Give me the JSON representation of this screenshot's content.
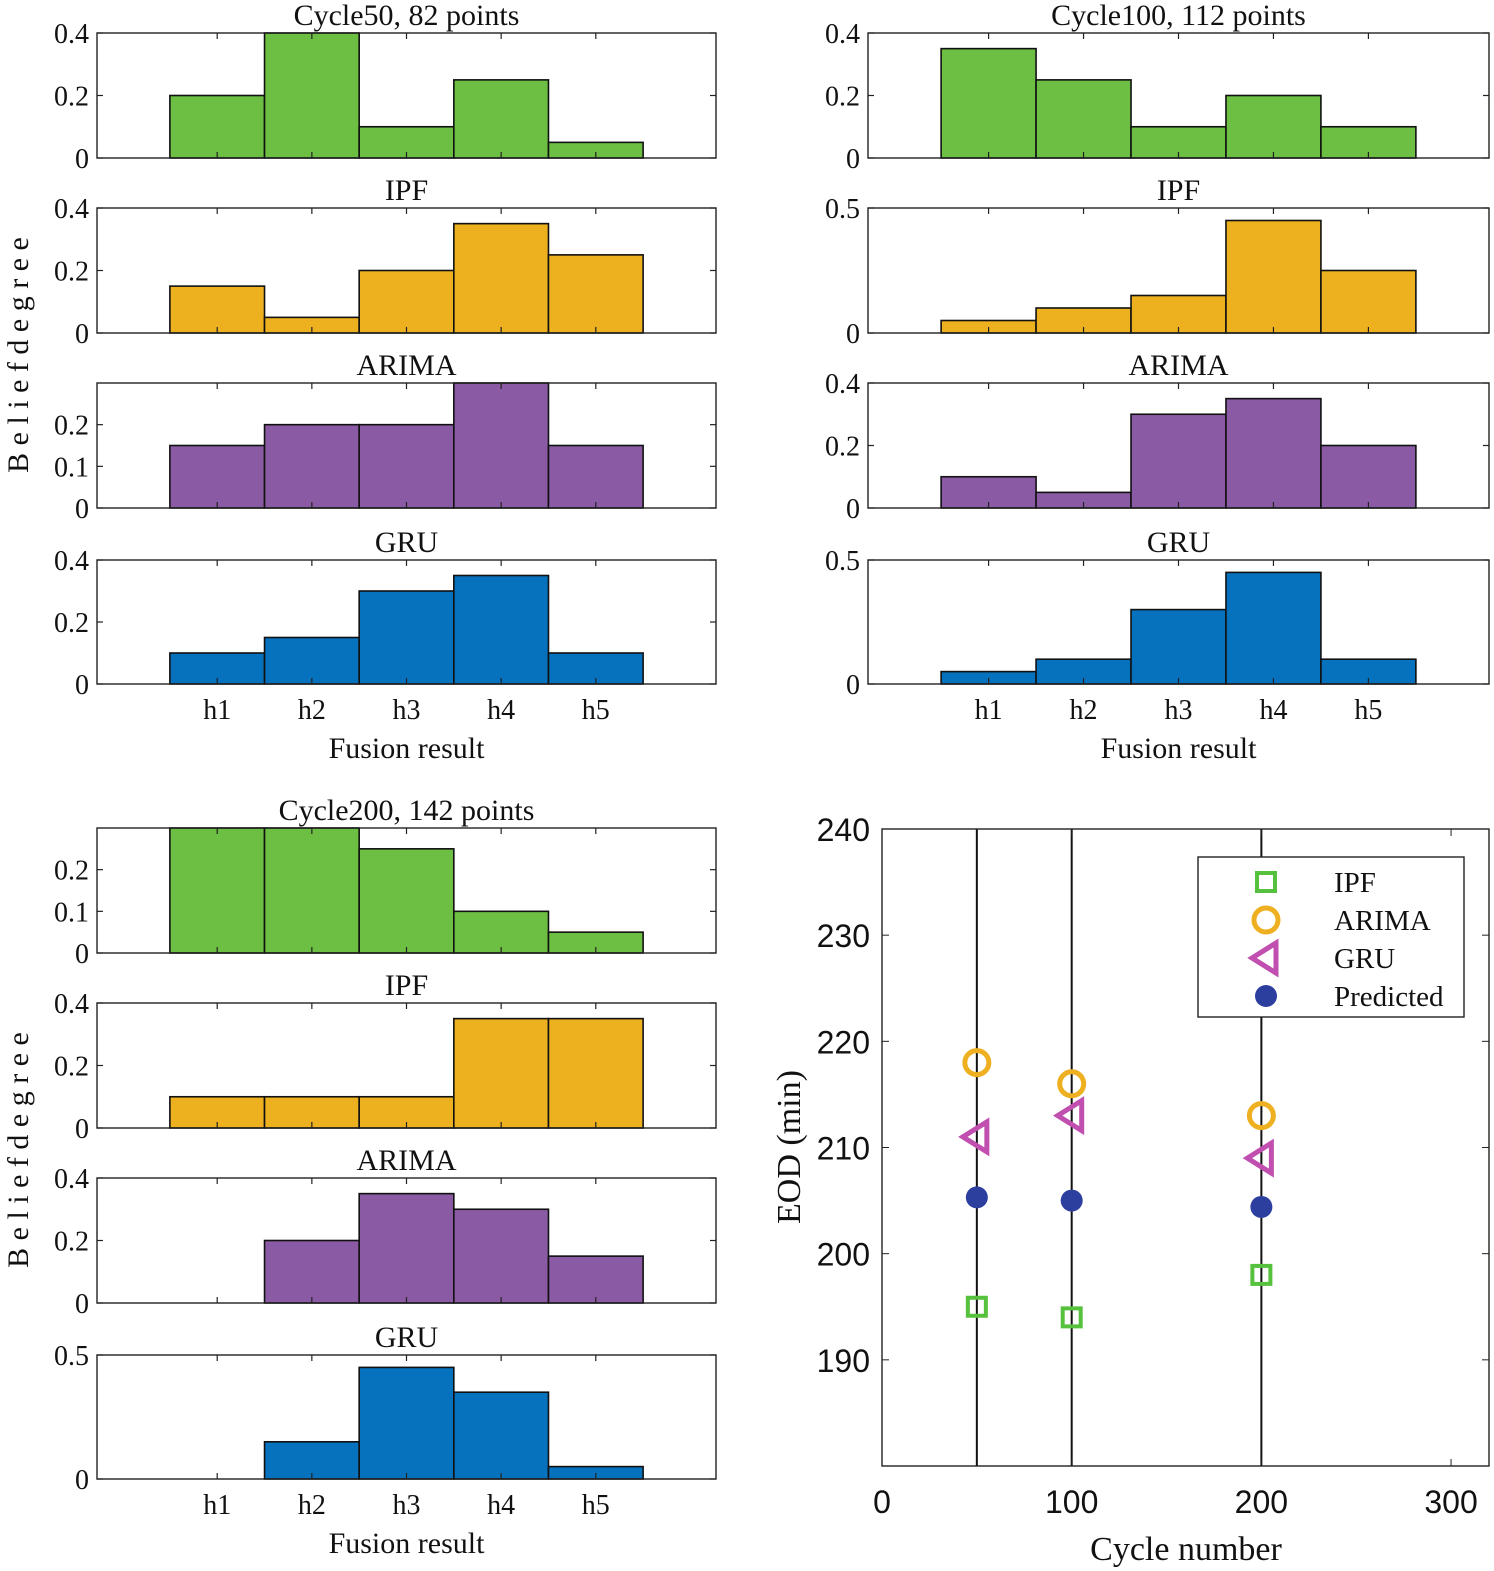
{
  "chart_data": [
    {
      "type": "bar",
      "group_title": "Cycle50, 82 points",
      "ylabel": "B e l i e f   d e g r e e",
      "xlabel": "Fusion result",
      "categories": [
        "h1",
        "h2",
        "h3",
        "h4",
        "h5"
      ],
      "subplots": [
        {
          "title": "Cycle50, 82 points",
          "color": "#6cbf42",
          "values": [
            0.2,
            0.4,
            0.1,
            0.25,
            0.05
          ],
          "ylim": [
            0,
            0.4
          ],
          "yticks": [
            0,
            0.2,
            0.4
          ],
          "ytick_labels": [
            "0",
            "0.2",
            "0.4"
          ]
        },
        {
          "title": "IPF",
          "color": "#edb120",
          "values": [
            0.15,
            0.05,
            0.2,
            0.35,
            0.25
          ],
          "ylim": [
            0,
            0.4
          ],
          "yticks": [
            0,
            0.2,
            0.4
          ],
          "ytick_labels": [
            "0",
            "0.2",
            "0.4"
          ]
        },
        {
          "title": "ARIMA",
          "color": "#8b5aa4",
          "values": [
            0.15,
            0.2,
            0.2,
            0.3,
            0.15
          ],
          "ylim": [
            0,
            0.3
          ],
          "yticks": [
            0,
            0.1,
            0.2
          ],
          "ytick_labels": [
            "0",
            "0.1",
            "0.2"
          ]
        },
        {
          "title": "GRU",
          "color": "#0672bd",
          "values": [
            0.1,
            0.15,
            0.3,
            0.35,
            0.1
          ],
          "ylim": [
            0,
            0.4
          ],
          "yticks": [
            0,
            0.2,
            0.4
          ],
          "ytick_labels": [
            "0",
            "0.2",
            "0.4"
          ]
        }
      ]
    },
    {
      "type": "bar",
      "group_title": "Cycle100, 112 points",
      "ylabel": "",
      "xlabel": "Fusion result",
      "categories": [
        "h1",
        "h2",
        "h3",
        "h4",
        "h5"
      ],
      "subplots": [
        {
          "title": "Cycle100, 112 points",
          "color": "#6cbf42",
          "values": [
            0.35,
            0.25,
            0.1,
            0.2,
            0.1
          ],
          "ylim": [
            0,
            0.4
          ],
          "yticks": [
            0,
            0.2,
            0.4
          ],
          "ytick_labels": [
            "0",
            "0.2",
            "0.4"
          ]
        },
        {
          "title": "IPF",
          "color": "#edb120",
          "values": [
            0.05,
            0.1,
            0.15,
            0.45,
            0.25
          ],
          "ylim": [
            0,
            0.5
          ],
          "yticks": [
            0,
            0.5
          ],
          "ytick_labels": [
            "0",
            "0.5"
          ]
        },
        {
          "title": "ARIMA",
          "color": "#8b5aa4",
          "values": [
            0.1,
            0.05,
            0.3,
            0.35,
            0.2
          ],
          "ylim": [
            0,
            0.4
          ],
          "yticks": [
            0,
            0.2,
            0.4
          ],
          "ytick_labels": [
            "0",
            "0.2",
            "0.4"
          ]
        },
        {
          "title": "GRU",
          "color": "#0672bd",
          "values": [
            0.05,
            0.1,
            0.3,
            0.45,
            0.1
          ],
          "ylim": [
            0,
            0.5
          ],
          "yticks": [
            0,
            0.5
          ],
          "ytick_labels": [
            "0",
            "0.5"
          ]
        }
      ]
    },
    {
      "type": "bar",
      "group_title": "Cycle200, 142 points",
      "ylabel": "B e l i e f   d e g r e e",
      "xlabel": "Fusion result",
      "categories": [
        "h1",
        "h2",
        "h3",
        "h4",
        "h5"
      ],
      "subplots": [
        {
          "title": "Cycle200, 142 points",
          "color": "#6cbf42",
          "values": [
            0.3,
            0.3,
            0.25,
            0.1,
            0.05
          ],
          "ylim": [
            0,
            0.3
          ],
          "yticks": [
            0,
            0.1,
            0.2
          ],
          "ytick_labels": [
            "0",
            "0.1",
            "0.2"
          ]
        },
        {
          "title": "IPF",
          "color": "#edb120",
          "values": [
            0.1,
            0.1,
            0.1,
            0.35,
            0.35
          ],
          "ylim": [
            0,
            0.4
          ],
          "yticks": [
            0,
            0.2,
            0.4
          ],
          "ytick_labels": [
            "0",
            "0.2",
            "0.4"
          ]
        },
        {
          "title": "ARIMA",
          "color": "#8b5aa4",
          "values": [
            0,
            0.2,
            0.35,
            0.3,
            0.15
          ],
          "ylim": [
            0,
            0.4
          ],
          "yticks": [
            0,
            0.2,
            0.4
          ],
          "ytick_labels": [
            "0",
            "0.2",
            "0.4"
          ]
        },
        {
          "title": "GRU",
          "color": "#0672bd",
          "values": [
            0,
            0.15,
            0.45,
            0.35,
            0.05
          ],
          "ylim": [
            0,
            0.5
          ],
          "yticks": [
            0,
            0.5
          ],
          "ytick_labels": [
            "0",
            "0.5"
          ]
        }
      ]
    },
    {
      "type": "scatter",
      "xlabel": "Cycle number",
      "ylabel": "EOD (min)",
      "xlim": [
        0,
        320
      ],
      "ylim": [
        180,
        240
      ],
      "xticks": [
        0,
        100,
        200,
        300
      ],
      "xtick_labels": [
        "0",
        "100",
        "200",
        "300"
      ],
      "yticks": [
        190,
        200,
        210,
        220,
        230,
        240
      ],
      "ytick_labels": [
        "190",
        "200",
        "210",
        "220",
        "230",
        "240"
      ],
      "vertical_lines": [
        50,
        100,
        200
      ],
      "legend_position": "top-right",
      "series": [
        {
          "name": "IPF",
          "marker": "square",
          "color": "#55c13c",
          "x": [
            50,
            100,
            200
          ],
          "y": [
            195,
            194,
            198
          ]
        },
        {
          "name": "ARIMA",
          "marker": "circle",
          "color": "#eeb020",
          "x": [
            50,
            100,
            200
          ],
          "y": [
            218,
            216,
            213
          ]
        },
        {
          "name": "GRU",
          "marker": "triangle-left",
          "color": "#c04fb0",
          "x": [
            50,
            100,
            200
          ],
          "y": [
            211,
            213,
            209
          ]
        },
        {
          "name": "Predicted",
          "marker": "filled-circle",
          "color": "#2c3f9f",
          "x": [
            50,
            100,
            200
          ],
          "y": [
            205.3,
            205,
            204.4
          ]
        }
      ]
    }
  ]
}
